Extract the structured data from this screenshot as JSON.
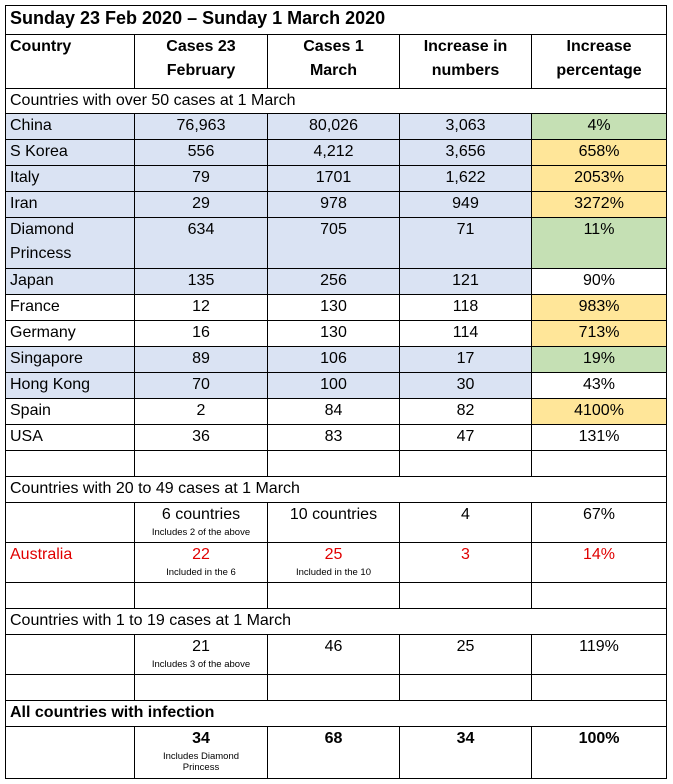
{
  "title": "Sunday 23 Feb 2020 – Sunday 1 March 2020",
  "headers": {
    "country": "Country",
    "cases_23_line1": "Cases 23",
    "cases_23_line2": "February",
    "cases_1_line1": "Cases 1",
    "cases_1_line2": "March",
    "increase_num_line1": "Increase in",
    "increase_num_line2": "numbers",
    "increase_pct_line1": "Increase",
    "increase_pct_line2": "percentage"
  },
  "section1": {
    "label": "Countries with over 50 cases at 1 March",
    "rows": [
      {
        "country": "China",
        "feb23": "76,963",
        "mar1": "80,026",
        "increase": "3,063",
        "pct": "4%"
      },
      {
        "country": "S Korea",
        "feb23": "556",
        "mar1": "4,212",
        "increase": "3,656",
        "pct": "658%"
      },
      {
        "country": "Italy",
        "feb23": "79",
        "mar1": "1701",
        "increase": "1,622",
        "pct": "2053%"
      },
      {
        "country": "Iran",
        "feb23": "29",
        "mar1": "978",
        "increase": "949",
        "pct": "3272%"
      },
      {
        "country_line1": "Diamond",
        "country_line2": "Princess",
        "feb23": "634",
        "mar1": "705",
        "increase": "71",
        "pct": "11%"
      },
      {
        "country": "Japan",
        "feb23": "135",
        "mar1": "256",
        "increase": "121",
        "pct": "90%"
      },
      {
        "country": "France",
        "feb23": "12",
        "mar1": "130",
        "increase": "118",
        "pct": "983%"
      },
      {
        "country": "Germany",
        "feb23": "16",
        "mar1": "130",
        "increase": "114",
        "pct": "713%"
      },
      {
        "country": "Singapore",
        "feb23": "89",
        "mar1": "106",
        "increase": "17",
        "pct": "19%"
      },
      {
        "country": "Hong Kong",
        "feb23": "70",
        "mar1": "100",
        "increase": "30",
        "pct": "43%"
      },
      {
        "country": "Spain",
        "feb23": "2",
        "mar1": "84",
        "increase": "82",
        "pct": "4100%"
      },
      {
        "country": "USA",
        "feb23": "36",
        "mar1": "83",
        "increase": "47",
        "pct": "131%"
      }
    ]
  },
  "section2": {
    "label": "Countries with 20 to 49 cases at 1 March",
    "summary": {
      "feb23": "6 countries",
      "feb23_note": "Includes 2 of the above",
      "mar1": "10 countries",
      "increase": "4",
      "pct": "67%"
    },
    "australia": {
      "country": "Australia",
      "feb23": "22",
      "feb23_note": "Included in the 6",
      "mar1": "25",
      "mar1_note": "Included in the 10",
      "increase": "3",
      "pct": "14%"
    }
  },
  "section3": {
    "label": "Countries with 1 to 19 cases at 1 March",
    "summary": {
      "feb23": "21",
      "feb23_note": "Includes 3 of the above",
      "mar1": "46",
      "increase": "25",
      "pct": "119%"
    }
  },
  "section4": {
    "label": "All countries with infection",
    "summary": {
      "feb23": "34",
      "feb23_note_line1": "Includes Diamond",
      "feb23_note_line2": "Princess",
      "mar1": "68",
      "increase": "34",
      "pct": "100%"
    }
  },
  "colors": {
    "row_blue": "#dae3f3",
    "cell_green": "#c5e0b4",
    "cell_amber": "#ffe699",
    "australia_red": "#e00000"
  }
}
